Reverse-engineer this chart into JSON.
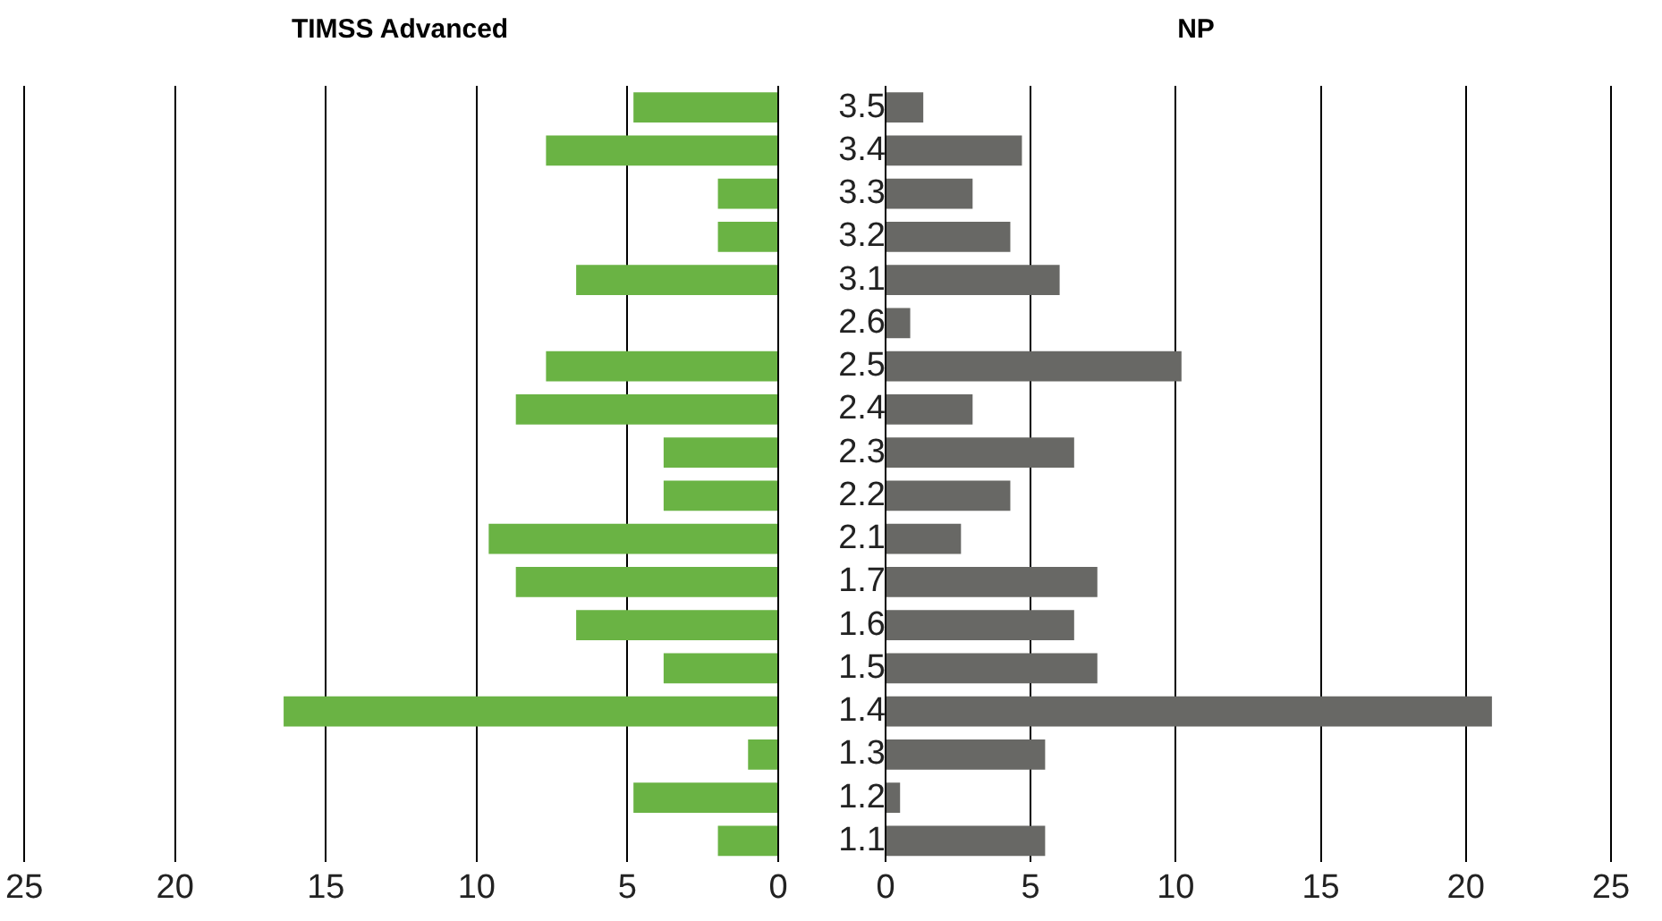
{
  "chart_data": [
    {
      "type": "bar",
      "orientation": "horizontal",
      "title": "TIMSS Advanced",
      "categories": [
        "3.5",
        "3.4",
        "3.3",
        "3.2",
        "3.1",
        "2.6",
        "2.5",
        "2.4",
        "2.3",
        "2.2",
        "2.1",
        "1.7",
        "1.6",
        "1.5",
        "1.4",
        "1.3",
        "1.2",
        "1.1"
      ],
      "values": [
        4.8,
        7.7,
        2.0,
        2.0,
        6.7,
        0,
        7.7,
        8.7,
        3.8,
        3.8,
        9.6,
        8.7,
        6.7,
        3.8,
        16.4,
        1.0,
        4.8,
        2.0
      ],
      "color": "#6ab344",
      "xlim": [
        25,
        0
      ],
      "xticks": [
        25,
        20,
        15,
        10,
        5,
        0
      ],
      "grid": "x",
      "tick_labels": "x"
    },
    {
      "type": "bar",
      "orientation": "horizontal",
      "title": "NP",
      "categories": [
        "3.5",
        "3.4",
        "3.3",
        "3.2",
        "3.1",
        "2.6",
        "2.5",
        "2.4",
        "2.3",
        "2.2",
        "2.1",
        "1.7",
        "1.6",
        "1.5",
        "1.4",
        "1.3",
        "1.2",
        "1.1"
      ],
      "values": [
        1.3,
        4.7,
        3.0,
        4.3,
        6.0,
        0.85,
        10.2,
        3.0,
        6.5,
        4.3,
        2.6,
        7.3,
        6.5,
        7.3,
        20.9,
        5.5,
        0.5,
        5.5
      ],
      "color": "#686865",
      "xlim": [
        0,
        25
      ],
      "xticks": [
        0,
        5,
        10,
        15,
        20,
        25
      ],
      "grid": "x"
    }
  ]
}
